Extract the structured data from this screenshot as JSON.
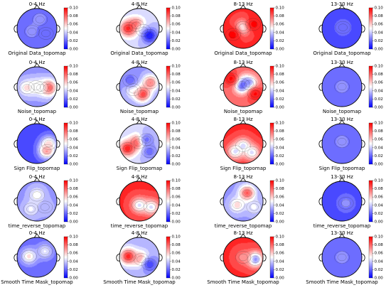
{
  "chart_data": {
    "type": "heatmap",
    "subtype": "eeg-topomap-grid",
    "bands": [
      "0-4 Hz",
      "4-8 Hz",
      "8-13 Hz",
      "13-30 Hz"
    ],
    "rows": [
      {
        "label": "Original Data_topomap",
        "panels": [
          {
            "base": 0.02,
            "blobs": [
              [
                0.15,
                -0.45,
                0.03,
                0.1
              ],
              [
                -0.25,
                0.15,
                0.03,
                0.08
              ],
              [
                0.45,
                0.25,
                0.02,
                0.06
              ]
            ]
          },
          {
            "base": 0.04,
            "blobs": [
              [
                -0.55,
                0.0,
                0.1,
                0.12
              ],
              [
                -0.15,
                -0.15,
                0.09,
                0.1
              ],
              [
                0.2,
                0.1,
                0.05,
                0.1
              ],
              [
                0.5,
                0.35,
                0.0,
                0.08
              ]
            ]
          },
          {
            "base": 0.09,
            "blobs": [
              [
                0.0,
                -0.05,
                0.04,
                0.08
              ],
              [
                -0.5,
                0.3,
                0.1,
                0.1
              ],
              [
                0.5,
                -0.2,
                0.1,
                0.1
              ]
            ]
          },
          {
            "base": 0.015,
            "blobs": [
              [
                0.05,
                -0.05,
                0.025,
                0.12
              ]
            ]
          }
        ]
      },
      {
        "label": "Noise_topomap",
        "panels": [
          {
            "base": 0.03,
            "blobs": [
              [
                0.55,
                0.05,
                0.1,
                0.1
              ],
              [
                -0.5,
                0.05,
                0.06,
                0.08
              ],
              [
                -0.05,
                0.0,
                0.055,
                0.06
              ],
              [
                0.2,
                0.05,
                0.05,
                0.05
              ]
            ]
          },
          {
            "base": 0.03,
            "blobs": [
              [
                0.15,
                0.35,
                0.1,
                0.06
              ],
              [
                -0.3,
                0.15,
                0.06,
                0.06
              ],
              [
                0.55,
                -0.2,
                0.08,
                0.08
              ],
              [
                -0.45,
                -0.3,
                0.02,
                0.06
              ]
            ]
          },
          {
            "base": 0.08,
            "blobs": [
              [
                -0.05,
                -0.1,
                0.0,
                0.05
              ],
              [
                0.3,
                -0.15,
                0.02,
                0.05
              ],
              [
                -0.6,
                -0.4,
                0.1,
                0.08
              ],
              [
                0.6,
                0.35,
                0.1,
                0.08
              ]
            ]
          },
          {
            "base": 0.02,
            "blobs": [
              [
                0.0,
                0.0,
                0.03,
                0.15
              ]
            ]
          }
        ]
      },
      {
        "label": "Sign Flip_topomap",
        "panels": [
          {
            "base": 0.015,
            "blobs": [
              [
                0.5,
                0.35,
                0.08,
                0.08
              ],
              [
                0.6,
                0.0,
                0.06,
                0.06
              ]
            ]
          },
          {
            "base": 0.04,
            "blobs": [
              [
                -0.05,
                -0.05,
                0.1,
                0.12
              ],
              [
                -0.6,
                0.25,
                0.1,
                0.08
              ],
              [
                0.35,
                -0.2,
                0.02,
                0.06
              ],
              [
                0.5,
                0.4,
                0.02,
                0.06
              ]
            ]
          },
          {
            "base": 0.09,
            "blobs": [
              [
                0.0,
                0.1,
                0.04,
                0.05
              ],
              [
                -0.4,
                0.4,
                0.04,
                0.06
              ],
              [
                0.45,
                0.45,
                0.04,
                0.06
              ]
            ]
          },
          {
            "base": 0.02,
            "blobs": [
              [
                0.0,
                -0.1,
                0.03,
                0.12
              ]
            ]
          }
        ]
      },
      {
        "label": "time_reverse_topomap",
        "panels": [
          {
            "base": 0.03,
            "blobs": [
              [
                0.0,
                -0.3,
                0.055,
                0.12
              ],
              [
                -0.3,
                0.4,
                0.05,
                0.08
              ],
              [
                0.4,
                0.3,
                0.04,
                0.07
              ]
            ]
          },
          {
            "base": 0.09,
            "blobs": [
              [
                0.0,
                0.2,
                0.04,
                0.08
              ],
              [
                0.6,
                0.3,
                0.04,
                0.06
              ]
            ]
          },
          {
            "base": 0.03,
            "blobs": [
              [
                0.2,
                -0.4,
                0.09,
                0.12
              ],
              [
                -0.3,
                0.2,
                0.06,
                0.08
              ],
              [
                0.55,
                0.3,
                0.05,
                0.08
              ]
            ]
          },
          {
            "base": 0.015,
            "blobs": [
              [
                0.2,
                0.1,
                0.03,
                0.12
              ]
            ]
          }
        ]
      },
      {
        "label": "Smooth Time Mask_topomap",
        "panels": [
          {
            "base": 0.02,
            "blobs": [
              [
                -0.4,
                -0.05,
                0.06,
                0.08
              ],
              [
                0.4,
                -0.3,
                0.05,
                0.07
              ]
            ]
          },
          {
            "base": 0.035,
            "blobs": [
              [
                -0.55,
                -0.05,
                0.1,
                0.1
              ],
              [
                0.1,
                0.1,
                0.08,
                0.1
              ],
              [
                0.5,
                0.35,
                0.01,
                0.07
              ]
            ]
          },
          {
            "base": 0.09,
            "blobs": [
              [
                0.6,
                0.1,
                0.02,
                0.09
              ],
              [
                0.0,
                0.0,
                0.07,
                0.08
              ]
            ]
          },
          {
            "base": 0.02,
            "blobs": [
              [
                0.0,
                0.0,
                0.03,
                0.15
              ]
            ]
          }
        ]
      }
    ],
    "colorbar": {
      "colormap": "bwr",
      "range": [
        0.0,
        0.1
      ],
      "ticks": [
        "0.00",
        "0.02",
        "0.04",
        "0.06",
        "0.08",
        "0.10"
      ]
    }
  }
}
